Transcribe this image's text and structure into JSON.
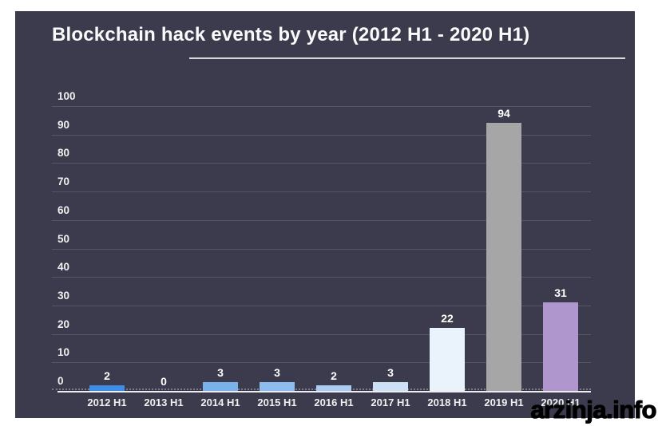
{
  "page": {
    "watermark": "arzinja.info"
  },
  "chart_data": {
    "type": "bar",
    "title": "Blockchain hack events by year (2012 H1 - 2020 H1)",
    "categories": [
      "2012 H1",
      "2013 H1",
      "2014 H1",
      "2015 H1",
      "2016 H1",
      "2017 H1",
      "2018 H1",
      "2019 H1",
      "2020 H1"
    ],
    "values": [
      2,
      0,
      3,
      3,
      2,
      3,
      22,
      94,
      31
    ],
    "bar_colors": [
      "#3e8de5",
      null,
      "#79b1ea",
      "#8dbdee",
      "#abcdf2",
      "#cde0f6",
      "#eaf2fb",
      "#a6a6a6",
      "#af97cd"
    ],
    "xlabel": "",
    "ylabel": "",
    "ylim": [
      0,
      100
    ],
    "yticks": [
      0,
      10,
      20,
      30,
      40,
      50,
      60,
      70,
      80,
      90,
      100
    ],
    "grid": true,
    "legend": false,
    "value_labels": true,
    "colors": {
      "panel_bg": "#3b3b4d",
      "page_bg": "#ffffff",
      "text": "#f0f0f0",
      "title_text": "#fafafa",
      "gridline": "rgba(255,255,255,0.14)",
      "axis_line": "#ededf2",
      "title_underline": "#d6d6dc",
      "watermark_color": "#000000"
    }
  }
}
